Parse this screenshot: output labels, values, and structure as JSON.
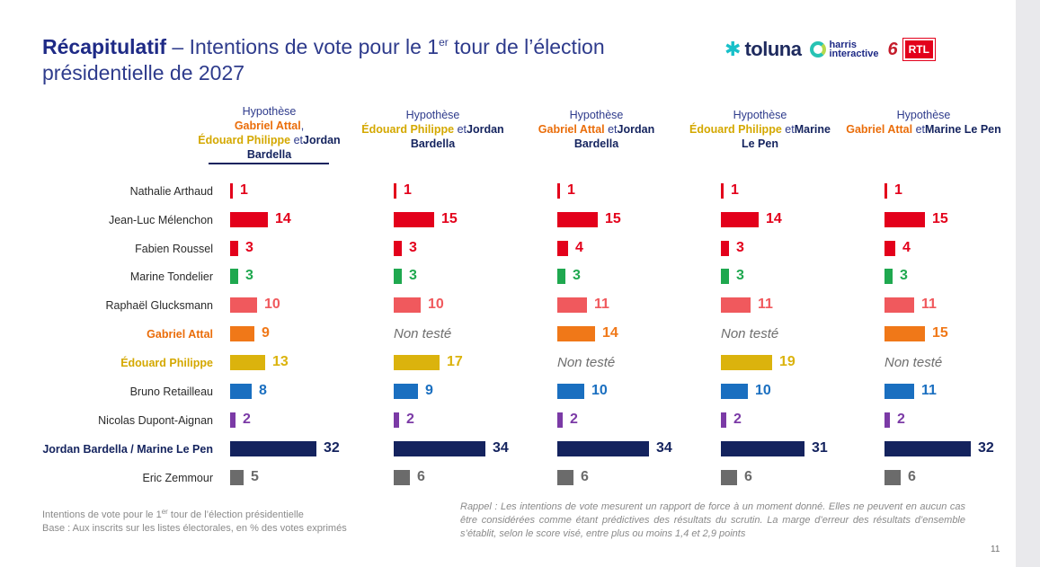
{
  "title": {
    "bold": "Récapitulatif",
    "rest_a": " – Intentions de vote pour le 1",
    "sup": "er",
    "rest_b": " tour de l’élection présidentielle de 2027"
  },
  "logos": {
    "toluna": "toluna",
    "harris_1": "harris",
    "harris_2": "interactive",
    "m6": "6",
    "rtl": "RTL"
  },
  "hypotheses": [
    {
      "prefix": "Hypothèse",
      "parts": [
        [
          "Gabriel Attal",
          "or"
        ],
        [
          ",",
          "plain"
        ],
        [
          "Édouard Philippe",
          "ye"
        ],
        [
          " et",
          "plain"
        ],
        [
          "Jordan Bardella",
          "nv"
        ]
      ]
    },
    {
      "prefix": "Hypothèse",
      "parts": [
        [
          "Édouard Philippe",
          "ye"
        ],
        [
          " et",
          "plain"
        ],
        [
          "Jordan Bardella",
          "nv"
        ]
      ]
    },
    {
      "prefix": "Hypothèse",
      "parts": [
        [
          "Gabriel Attal",
          "or"
        ],
        [
          " et",
          "plain"
        ],
        [
          "Jordan Bardella",
          "nv"
        ]
      ]
    },
    {
      "prefix": "Hypothèse",
      "parts": [
        [
          "Édouard Philippe",
          "ye"
        ],
        [
          " et",
          "plain"
        ],
        [
          "Marine Le Pen",
          "nv"
        ]
      ]
    },
    {
      "prefix": "Hypothèse",
      "parts": [
        [
          "Gabriel Attal",
          "or"
        ],
        [
          " et",
          "plain"
        ],
        [
          "Marine Le Pen",
          "nv"
        ]
      ]
    }
  ],
  "chart_data": {
    "type": "bar",
    "orientation": "horizontal",
    "unit": "% des votes exprimés",
    "not_tested_label": "Non testé",
    "categories": [
      "Nathalie Arthaud",
      "Jean-Luc Mélenchon",
      "Fabien Roussel",
      "Marine Tondelier",
      "Raphaël Glucksmann",
      "Gabriel Attal",
      "Édouard Philippe",
      "Bruno Retailleau",
      "Nicolas Dupont-Aignan",
      "Jordan Bardella / Marine Le Pen",
      "Eric Zemmour"
    ],
    "category_styles": [
      "normal",
      "normal",
      "normal",
      "normal",
      "normal",
      "or",
      "ye",
      "normal",
      "normal",
      "nv",
      "normal"
    ],
    "colors": [
      "#e3001b",
      "#e3001b",
      "#e3001b",
      "#1fa84f",
      "#f0595d",
      "#f07818",
      "#dbb30d",
      "#1a6fc0",
      "#7b3aa6",
      "#14235e",
      "#6b6b6b"
    ],
    "series": [
      {
        "values": [
          1,
          14,
          3,
          3,
          10,
          9,
          13,
          8,
          2,
          32,
          5
        ]
      },
      {
        "values": [
          1,
          15,
          3,
          3,
          10,
          null,
          17,
          9,
          2,
          34,
          6
        ]
      },
      {
        "values": [
          1,
          15,
          4,
          3,
          11,
          14,
          null,
          10,
          2,
          34,
          6
        ]
      },
      {
        "values": [
          1,
          14,
          3,
          3,
          11,
          null,
          19,
          10,
          2,
          31,
          6
        ]
      },
      {
        "values": [
          1,
          15,
          4,
          3,
          11,
          15,
          null,
          11,
          2,
          32,
          6
        ]
      }
    ]
  },
  "footer": {
    "left_line1_a": "Intentions de vote pour le 1",
    "left_line1_sup": "er",
    "left_line1_b": " tour de l’élection présidentielle",
    "left_line2": "Base : Aux inscrits sur les listes électorales, en % des votes exprimés",
    "right": "Rappel : Les intentions de vote mesurent un rapport de force à un moment donné. Elles ne peuvent en aucun cas être considérées comme étant prédictives des résultats du scrutin. La marge d’erreur des résultats d’ensemble s’établit, selon le score visé, entre plus ou moins 1,4 et 2,9 points",
    "page_number": "11"
  }
}
